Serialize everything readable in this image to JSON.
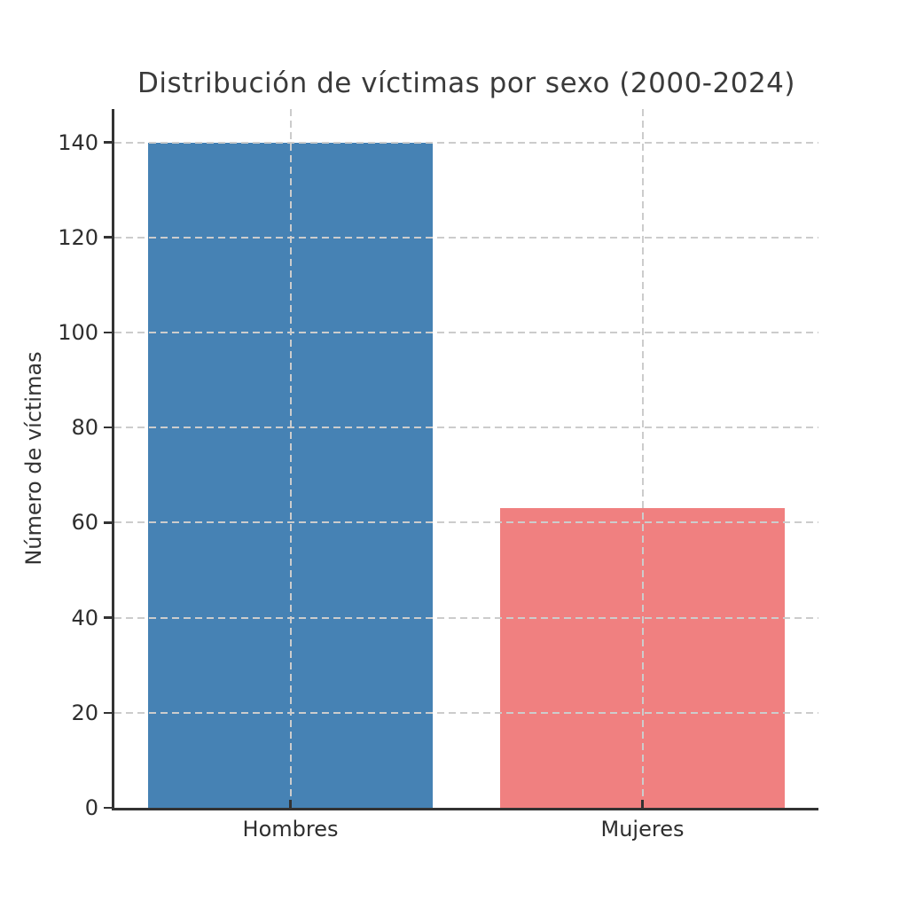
{
  "chart_data": {
    "type": "bar",
    "title": "Distribución de víctimas por sexo (2000-2024)",
    "xlabel": "",
    "ylabel": "Número de víctimas",
    "categories": [
      "Hombres",
      "Mujeres"
    ],
    "values": [
      140,
      63
    ],
    "bar_colors": [
      "#4682B4",
      "#F08080"
    ],
    "yticks": [
      0,
      20,
      40,
      60,
      80,
      100,
      120,
      140
    ],
    "ylim": [
      0,
      147
    ],
    "bar_width_fraction": 0.81,
    "grid": "dashed, drawn above bars, horizontal at yticks and vertical at bar centers",
    "grid_color": "#cccccc",
    "axis_color": "#333333",
    "text_color": "#2e2e2e",
    "legend_position": "none"
  }
}
